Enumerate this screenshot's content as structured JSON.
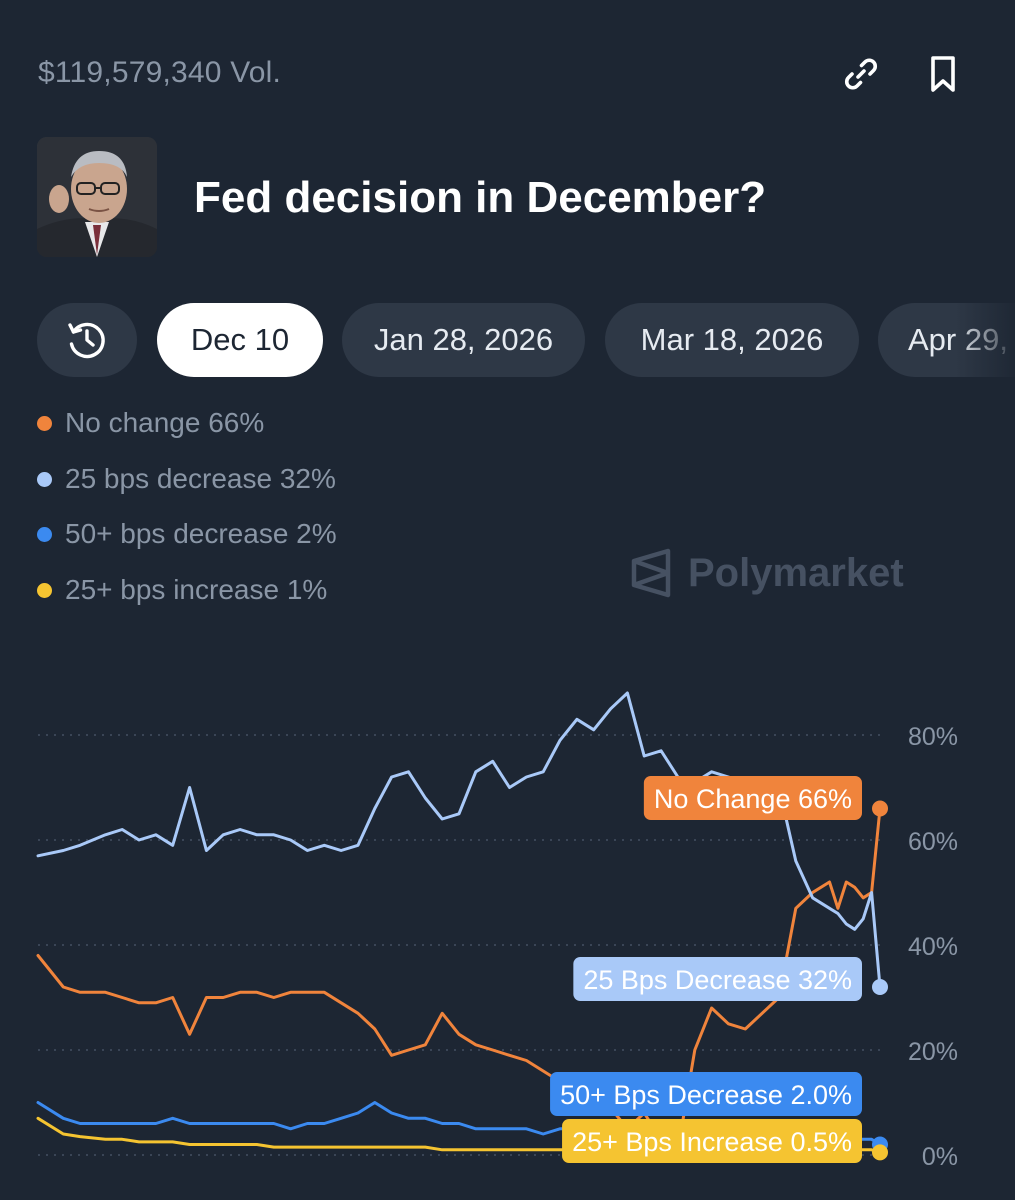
{
  "header": {
    "volume": "$119,579,340 Vol.",
    "title": "Fed decision in December?",
    "icons": {
      "link": "link-icon",
      "bookmark": "bookmark-icon",
      "history": "clock-history-icon"
    }
  },
  "tabs": [
    {
      "label": "Dec 10",
      "active": true
    },
    {
      "label": "Jan 28, 2026",
      "active": false
    },
    {
      "label": "Mar 18, 2026",
      "active": false
    },
    {
      "label": "Apr 29,",
      "active": false
    }
  ],
  "legend": [
    {
      "label": "No change 66%",
      "color": "#f0843c"
    },
    {
      "label": "25 bps decrease 32%",
      "color": "#a9c9f8"
    },
    {
      "label": "50+ bps decrease 2%",
      "color": "#3b8af0"
    },
    {
      "label": "25+ bps increase 1%",
      "color": "#f5c431"
    }
  ],
  "watermark": "Polymarket",
  "colors": {
    "background": "#1d2633",
    "muted": "#8a96a6",
    "tab": "#2e3846"
  },
  "chart_data": {
    "type": "line",
    "ylim": [
      0,
      90
    ],
    "y_ticks": [
      "80%",
      "60%",
      "40%",
      "20%",
      "0%"
    ],
    "y_tick_values": [
      80,
      60,
      40,
      20,
      0
    ],
    "x": [
      0,
      3,
      5,
      8,
      10,
      12,
      14,
      16,
      18,
      20,
      22,
      24,
      26,
      28,
      30,
      32,
      34,
      36,
      38,
      40,
      42,
      44,
      46,
      48,
      50,
      52,
      54,
      56,
      58,
      60,
      62,
      64,
      66,
      68,
      70,
      72,
      74,
      76,
      78,
      80,
      82,
      84,
      86,
      88,
      90,
      92,
      94,
      95,
      96,
      97,
      98,
      99,
      100
    ],
    "series": [
      {
        "name": "No change",
        "label": "No Change 66%",
        "color": "#f0843c",
        "values": [
          38,
          32,
          31,
          31,
          30,
          29,
          29,
          30,
          23,
          30,
          30,
          31,
          31,
          30,
          31,
          31,
          31,
          29,
          27,
          24,
          19,
          20,
          21,
          27,
          23,
          21,
          20,
          19,
          18,
          16,
          14,
          12,
          11,
          9,
          5,
          8,
          3,
          1,
          20,
          28,
          25,
          24,
          27,
          30,
          47,
          50,
          52,
          47,
          52,
          51,
          49,
          50,
          66
        ]
      },
      {
        "name": "25 bps decrease",
        "label": "25 Bps Decrease 32%",
        "color": "#a9c9f8",
        "values": [
          57,
          58,
          59,
          61,
          62,
          60,
          61,
          59,
          70,
          58,
          61,
          62,
          61,
          61,
          60,
          58,
          59,
          58,
          59,
          66,
          72,
          73,
          68,
          64,
          65,
          73,
          75,
          70,
          72,
          73,
          79,
          83,
          81,
          85,
          88,
          76,
          77,
          72,
          71,
          73,
          72,
          71,
          70,
          70,
          56,
          49,
          47,
          46,
          44,
          43,
          45,
          50,
          32
        ]
      },
      {
        "name": "50+ bps decrease",
        "label": "50+ Bps Decrease 2.0%",
        "color": "#3b8af0",
        "values": [
          10,
          7,
          6,
          6,
          6,
          6,
          6,
          7,
          6,
          6,
          6,
          6,
          6,
          6,
          5,
          6,
          6,
          7,
          8,
          10,
          8,
          7,
          7,
          6,
          6,
          5,
          5,
          5,
          5,
          4,
          5,
          5,
          4,
          4,
          4,
          3,
          4,
          4,
          4,
          3,
          3,
          3,
          3,
          3,
          3,
          3,
          3,
          3,
          3,
          3,
          3,
          3,
          2
        ]
      },
      {
        "name": "25+ bps increase",
        "label": "25+ Bps Increase 0.5%",
        "color": "#f5c431",
        "values": [
          7,
          4,
          3.5,
          3,
          3,
          2.5,
          2.5,
          2.5,
          2,
          2,
          2,
          2,
          2,
          1.5,
          1.5,
          1.5,
          1.5,
          1.5,
          1.5,
          1.5,
          1.5,
          1.5,
          1.5,
          1,
          1,
          1,
          1,
          1,
          1,
          1,
          1,
          1,
          1,
          1,
          1,
          1,
          1,
          1,
          1,
          1,
          1,
          1,
          1,
          1,
          1,
          1,
          1,
          1,
          1,
          1,
          1,
          1,
          0.5
        ]
      }
    ],
    "grid": true,
    "legend": "top-left"
  }
}
